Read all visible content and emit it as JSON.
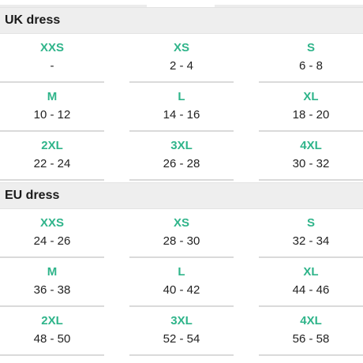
{
  "colors": {
    "header_bg": "#eeeeee",
    "size_text": "#2fb48a",
    "range_text": "#222222",
    "divider": "#dadada"
  },
  "sections": [
    {
      "title": "UK dress",
      "rows": [
        [
          {
            "size": "XXS",
            "range": "-"
          },
          {
            "size": "XS",
            "range": "2 - 4"
          },
          {
            "size": "S",
            "range": "6 - 8"
          }
        ],
        [
          {
            "size": "M",
            "range": "10 - 12"
          },
          {
            "size": "L",
            "range": "14 - 16"
          },
          {
            "size": "XL",
            "range": "18 - 20"
          }
        ],
        [
          {
            "size": "2XL",
            "range": "22 - 24"
          },
          {
            "size": "3XL",
            "range": "26 - 28"
          },
          {
            "size": "4XL",
            "range": "30 - 32"
          }
        ]
      ]
    },
    {
      "title": "EU dress",
      "rows": [
        [
          {
            "size": "XXS",
            "range": "24 - 26"
          },
          {
            "size": "XS",
            "range": "28 - 30"
          },
          {
            "size": "S",
            "range": "32 - 34"
          }
        ],
        [
          {
            "size": "M",
            "range": "36 - 38"
          },
          {
            "size": "L",
            "range": "40 - 42"
          },
          {
            "size": "XL",
            "range": "44 - 46"
          }
        ],
        [
          {
            "size": "2XL",
            "range": "48 - 50"
          },
          {
            "size": "3XL",
            "range": "52 - 54"
          },
          {
            "size": "4XL",
            "range": "56 - 58"
          }
        ]
      ]
    }
  ]
}
